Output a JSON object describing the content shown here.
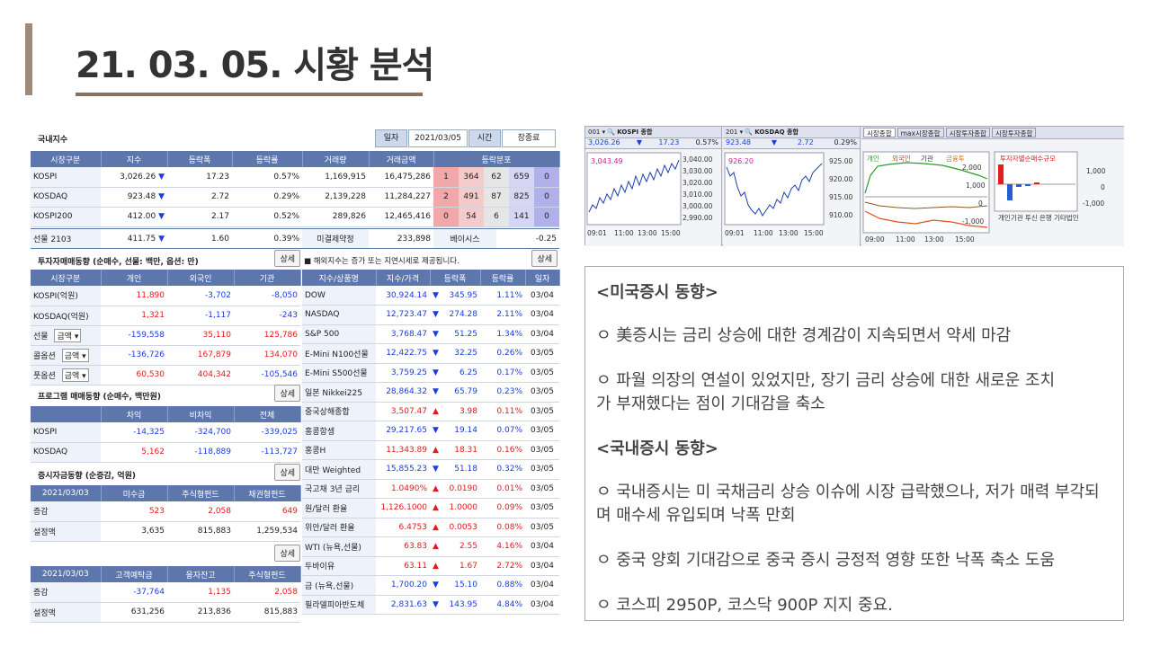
{
  "title": "21. 03. 05. 시황 분석",
  "domestic": {
    "title": "국내지수",
    "date_label": "일자",
    "date": "2021/03/05",
    "time_label": "시간",
    "time": "장종료",
    "headers": [
      "시장구분",
      "지수",
      "등락폭",
      "등락률",
      "거래량",
      "거래금액",
      "등락분포"
    ],
    "rows": [
      {
        "name": "KOSPI",
        "index": "3,026.26",
        "arrow": "▼",
        "chg": "17.23",
        "rate": "0.57%",
        "vol": "1,169,915",
        "amt": "16,475,286",
        "d": [
          "1",
          "364",
          "62",
          "659",
          "0"
        ]
      },
      {
        "name": "KOSDAQ",
        "index": "923.48",
        "arrow": "▼",
        "chg": "2.72",
        "rate": "0.29%",
        "vol": "2,139,228",
        "amt": "11,284,227",
        "d": [
          "2",
          "491",
          "87",
          "825",
          "0"
        ]
      },
      {
        "name": "KOSPI200",
        "index": "412.00",
        "arrow": "▼",
        "chg": "2.17",
        "rate": "0.52%",
        "vol": "289,826",
        "amt": "12,465,416",
        "d": [
          "0",
          "54",
          "6",
          "141",
          "0"
        ]
      }
    ],
    "futures": {
      "name": "선물 2103",
      "index": "411.75",
      "arrow": "▼",
      "chg": "1.60",
      "rate": "0.39%",
      "oi_label": "미결제약정",
      "oi": "233,898",
      "basis_label": "베이시스",
      "basis": "-0.25"
    }
  },
  "investor": {
    "title": "투자자매매동향 (순매수, 선물: 백만, 옵션: 만)",
    "btn": "상세",
    "headers": [
      "시장구분",
      "개인",
      "외국인",
      "기관"
    ],
    "rows": [
      {
        "name": "KOSPI(억원)",
        "a": "11,890",
        "b": "-3,702",
        "c": "-8,050"
      },
      {
        "name": "KOSDAQ(억원)",
        "a": "1,321",
        "b": "-1,117",
        "c": "-243"
      },
      {
        "name": "선물",
        "sel": "금액",
        "a": "-159,558",
        "b": "35,110",
        "c": "125,786"
      },
      {
        "name": "콜옵션",
        "sel": "금액",
        "a": "-136,726",
        "b": "167,879",
        "c": "134,070"
      },
      {
        "name": "풋옵션",
        "sel": "금액",
        "a": "60,530",
        "b": "404,342",
        "c": "-105,546"
      }
    ]
  },
  "program": {
    "title": "프로그램 매매동향 (순매수, 백만원)",
    "btn": "상세",
    "headers": [
      "",
      "차익",
      "비차익",
      "전체"
    ],
    "rows": [
      {
        "name": "KOSPI",
        "a": "-14,325",
        "b": "-324,700",
        "c": "-339,025"
      },
      {
        "name": "KOSDAQ",
        "a": "5,162",
        "b": "-118,889",
        "c": "-113,727"
      }
    ]
  },
  "funds": {
    "title": "증시자금동향 (순증감, 억원)",
    "btn": "상세",
    "btn2": "상세",
    "headers1": [
      "2021/03/03",
      "미수금",
      "주식형펀드",
      "채권형펀드"
    ],
    "rows1": [
      {
        "name": "증감",
        "a": "523",
        "b": "2,058",
        "c": "649"
      },
      {
        "name": "설정액",
        "a": "3,635",
        "b": "815,883",
        "c": "1,259,534"
      }
    ],
    "headers2": [
      "2021/03/03",
      "고객예탁금",
      "융자잔고",
      "주식형펀드"
    ],
    "rows2": [
      {
        "name": "증감",
        "a": "-37,764",
        "b": "1,135",
        "c": "2,058"
      },
      {
        "name": "설정액",
        "a": "631,256",
        "b": "213,836",
        "c": "815,883"
      }
    ]
  },
  "overseas": {
    "note": "■ 해외지수는 증가 또는 지연시세로 제공됩니다.",
    "btn": "상세",
    "headers": [
      "지수/상품명",
      "지수/가격",
      "등락폭",
      "등락률",
      "일자"
    ],
    "rows": [
      {
        "name": "DOW",
        "p": "30,924.14",
        "ar": "▼",
        "c": "345.95",
        "r": "1.11%",
        "d": "03/04"
      },
      {
        "name": "NASDAQ",
        "p": "12,723.47",
        "ar": "▼",
        "c": "274.28",
        "r": "2.11%",
        "d": "03/04"
      },
      {
        "name": "S&P 500",
        "p": "3,768.47",
        "ar": "▼",
        "c": "51.25",
        "r": "1.34%",
        "d": "03/04"
      },
      {
        "name": "E-Mini N100선물",
        "p": "12,422.75",
        "ar": "▼",
        "c": "32.25",
        "r": "0.26%",
        "d": "03/05"
      },
      {
        "name": "E-Mini S500선물",
        "p": "3,759.25",
        "ar": "▼",
        "c": "6.25",
        "r": "0.17%",
        "d": "03/05"
      },
      {
        "name": "일본 Nikkei225",
        "p": "28,864.32",
        "ar": "▼",
        "c": "65.79",
        "r": "0.23%",
        "d": "03/05"
      },
      {
        "name": "중국상해종합",
        "p": "3,507.47",
        "ar": "▲",
        "c": "3.98",
        "r": "0.11%",
        "d": "03/05"
      },
      {
        "name": "홍콩항셍",
        "p": "29,217.65",
        "ar": "▼",
        "c": "19.14",
        "r": "0.07%",
        "d": "03/05"
      },
      {
        "name": "홍콩H",
        "p": "11,343.89",
        "ar": "▲",
        "c": "18.31",
        "r": "0.16%",
        "d": "03/05"
      },
      {
        "name": "대만 Weighted",
        "p": "15,855.23",
        "ar": "▼",
        "c": "51.18",
        "r": "0.32%",
        "d": "03/05"
      },
      {
        "name": "국고채 3년 금리",
        "p": "1.0490%",
        "ar": "▲",
        "c": "0.0190",
        "r": "0.01%",
        "d": "03/05"
      },
      {
        "name": "원/달러 환율",
        "p": "1,126.1000",
        "ar": "▲",
        "c": "1.0000",
        "r": "0.09%",
        "d": "03/05"
      },
      {
        "name": "위안/달러 환율",
        "p": "6.4753",
        "ar": "▲",
        "c": "0.0053",
        "r": "0.08%",
        "d": "03/05"
      },
      {
        "name": "WTI (뉴욕,선물)",
        "p": "63.83",
        "ar": "▲",
        "c": "2.55",
        "r": "4.16%",
        "d": "03/04"
      },
      {
        "name": "두바이유",
        "p": "63.11",
        "ar": "▲",
        "c": "1.67",
        "r": "2.72%",
        "d": "03/04"
      },
      {
        "name": "금 (뉴욕,선물)",
        "p": "1,700.20",
        "ar": "▼",
        "c": "15.10",
        "r": "0.88%",
        "d": "03/04"
      },
      {
        "name": "필라델피아반도체",
        "p": "2,831.63",
        "ar": "▼",
        "c": "143.95",
        "r": "4.84%",
        "d": "03/04"
      }
    ]
  },
  "charts": {
    "kospi": {
      "code": "001",
      "name": "KOSPI 종합",
      "val": "3,026.26",
      "arrow": "▼",
      "chg": "17.23",
      "rate": "0.57%",
      "last": "3,043.49",
      "y": [
        "3,040.00",
        "3,030.00",
        "3,020.00",
        "3,010.00",
        "3,000.00",
        "2,990.00"
      ],
      "x": [
        "09:01",
        "11:00",
        "13:00",
        "15:00"
      ]
    },
    "kosdaq": {
      "code": "201",
      "name": "KOSDAQ 종합",
      "val": "923.48",
      "arrow": "▼",
      "chg": "2.72",
      "rate": "0.29%",
      "last": "926.20",
      "y": [
        "925.00",
        "920.00",
        "915.00",
        "910.00"
      ],
      "x": [
        "09:01",
        "11:00",
        "13:00",
        "15:00"
      ]
    },
    "tabs": [
      "시장종합",
      "max시장종합",
      "시장투자종합",
      "시장투자종합"
    ],
    "legend": [
      "개인",
      "외국인",
      "기관",
      "금융투"
    ],
    "x3": [
      "09:00",
      "11:00",
      "13:00",
      "15:00"
    ],
    "y3": [
      "2,000",
      "1,000",
      "0",
      "-1,000"
    ],
    "bar_title": "투자자별순매수규모",
    "bar_y": [
      "1,000",
      "0",
      "-1,000"
    ],
    "bar_x": [
      "개인",
      "기관",
      "투신",
      "은행",
      "기타법인"
    ]
  },
  "comment": {
    "us_head": "<미국증시 동향>",
    "us": [
      "ㅇ 美증시는 금리 상승에 대한 경계감이 지속되면서 약세 마감",
      "ㅇ 파월 의장의 연설이 있었지만, 장기 금리 상승에 대한 새로운 조치가 부재했다는 점이 기대감을 축소"
    ],
    "kr_head": "<국내증시 동향>",
    "kr": [
      "ㅇ 국내증시는 미 국채금리 상승 이슈에 시장 급락했으나, 저가 매력 부각되며 매수세 유입되며 낙폭 만회",
      "ㅇ 중국 양회 기대감으로 중국 증시 긍정적 영향 또한 낙폭 축소 도움",
      "ㅇ 코스피 2950P, 코스닥 900P 지지 중요."
    ]
  }
}
